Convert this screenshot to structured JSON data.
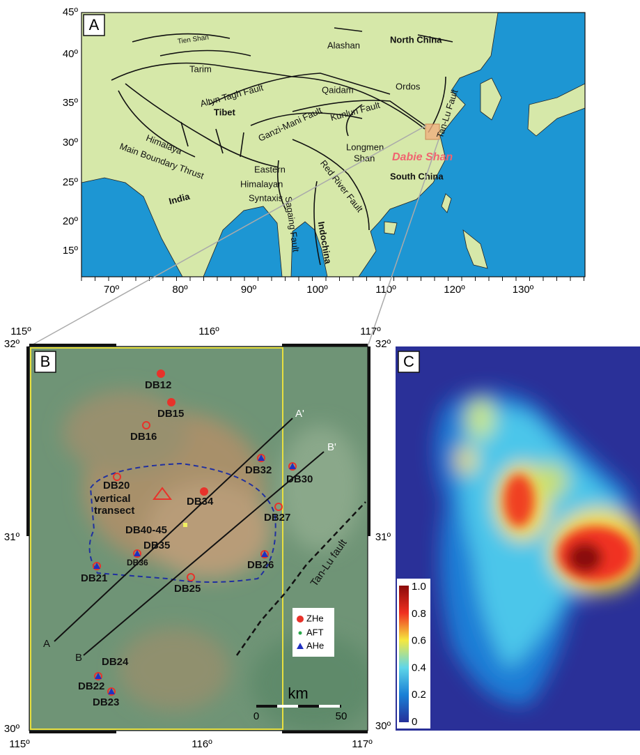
{
  "panel_a": {
    "label": "A",
    "lat_labels": [
      "45º",
      "40º",
      "35º",
      "30º",
      "25º",
      "20º",
      "15º"
    ],
    "lon_labels": [
      "70º",
      "80º",
      "90º",
      "100º",
      "110º",
      "120º",
      "130º"
    ],
    "features": [
      "Tien Shan",
      "Alashan",
      "North China",
      "Tarim",
      "Ordos",
      "Qaidam",
      "Altyn Tagh Fault",
      "Kunlun Fault",
      "Tibet",
      "Ganzi-Mani Fault",
      "Tan-Lu Fault",
      "Longmen",
      "Shan",
      "Himalaya",
      "Main Boundary Thrust",
      "Dabie Shan",
      "Eastern",
      "Himalayan",
      "Syntaxis",
      "South China",
      "Red River Fault",
      "India",
      "Sagaing Fault",
      "Indochina"
    ]
  },
  "panel_b": {
    "label": "B",
    "top_labels": [
      "115º",
      "116º",
      "117º"
    ],
    "bottom_labels": [
      "115º",
      "116º",
      "117º"
    ],
    "left_labels": [
      "32º",
      "31º",
      "30º"
    ],
    "right_labels": [
      "32º",
      "31º",
      "30º"
    ],
    "samples": [
      "DB12",
      "DB15",
      "DB16",
      "DB32",
      "DB30",
      "DB20",
      "DB40-45",
      "DB34",
      "DB35",
      "DB27",
      "DB36",
      "DB21",
      "DB26",
      "DB25",
      "DB24",
      "DB22",
      "DB23"
    ],
    "transect_text": [
      "vertical",
      "transect"
    ],
    "profile_ends": [
      "A'",
      "B'",
      "A",
      "B"
    ],
    "fault": "Tan-Lu fault",
    "legend": [
      "ZHe",
      "AFT",
      "AHe"
    ],
    "scale": {
      "unit": "km",
      "start": "0",
      "end": "50"
    }
  },
  "panel_c": {
    "label": "C",
    "colorbar_labels": [
      "1.0",
      "0.8",
      "0.6",
      "0.4",
      "0.2",
      "0"
    ]
  }
}
